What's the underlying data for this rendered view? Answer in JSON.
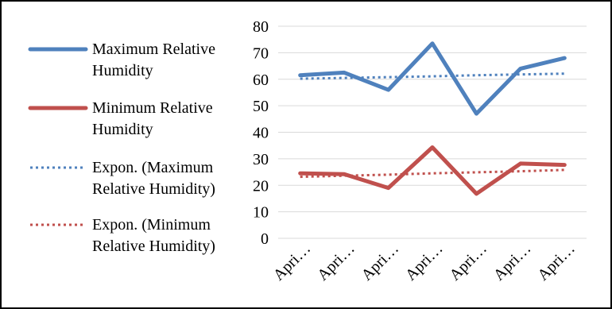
{
  "chart_data": {
    "type": "line",
    "categories": [
      "Apri…",
      "Apri…",
      "Apri…",
      "Apri…",
      "Apri…",
      "Apri…",
      "Apri…"
    ],
    "ylim": [
      0,
      80
    ],
    "yticks": [
      0,
      10,
      20,
      30,
      40,
      50,
      60,
      70,
      80
    ],
    "grid": true,
    "legend_position": "left",
    "series": [
      {
        "name": "Maximum Relative Humidity",
        "values": [
          61.5,
          62.5,
          56,
          73.5,
          47,
          64,
          68
        ],
        "color": "#4F81BD",
        "style": "solid"
      },
      {
        "name": "Minimum Relative Humidity",
        "values": [
          24.5,
          24.2,
          19,
          34.3,
          16.8,
          28.2,
          27.7
        ],
        "color": "#C0504D",
        "style": "solid"
      },
      {
        "name": "Expon. (Maximum Relative Humidity)",
        "values": [
          60.2,
          60.5,
          60.8,
          61.1,
          61.5,
          61.8,
          62.1
        ],
        "color": "#4F81BD",
        "style": "dotted"
      },
      {
        "name": "Expon. (Minimum Relative Humidity)",
        "values": [
          23.2,
          23.6,
          24.0,
          24.5,
          24.9,
          25.3,
          25.8
        ],
        "color": "#C0504D",
        "style": "dotted"
      }
    ],
    "legend": [
      {
        "lines": [
          "Maximum Relative",
          "Humidity"
        ]
      },
      {
        "lines": [
          "Minimum Relative",
          "Humidity"
        ]
      },
      {
        "lines": [
          "Expon. (Maximum",
          "Relative Humidity)"
        ]
      },
      {
        "lines": [
          "Expon. (Minimum",
          "Relative Humidity)"
        ]
      }
    ]
  }
}
